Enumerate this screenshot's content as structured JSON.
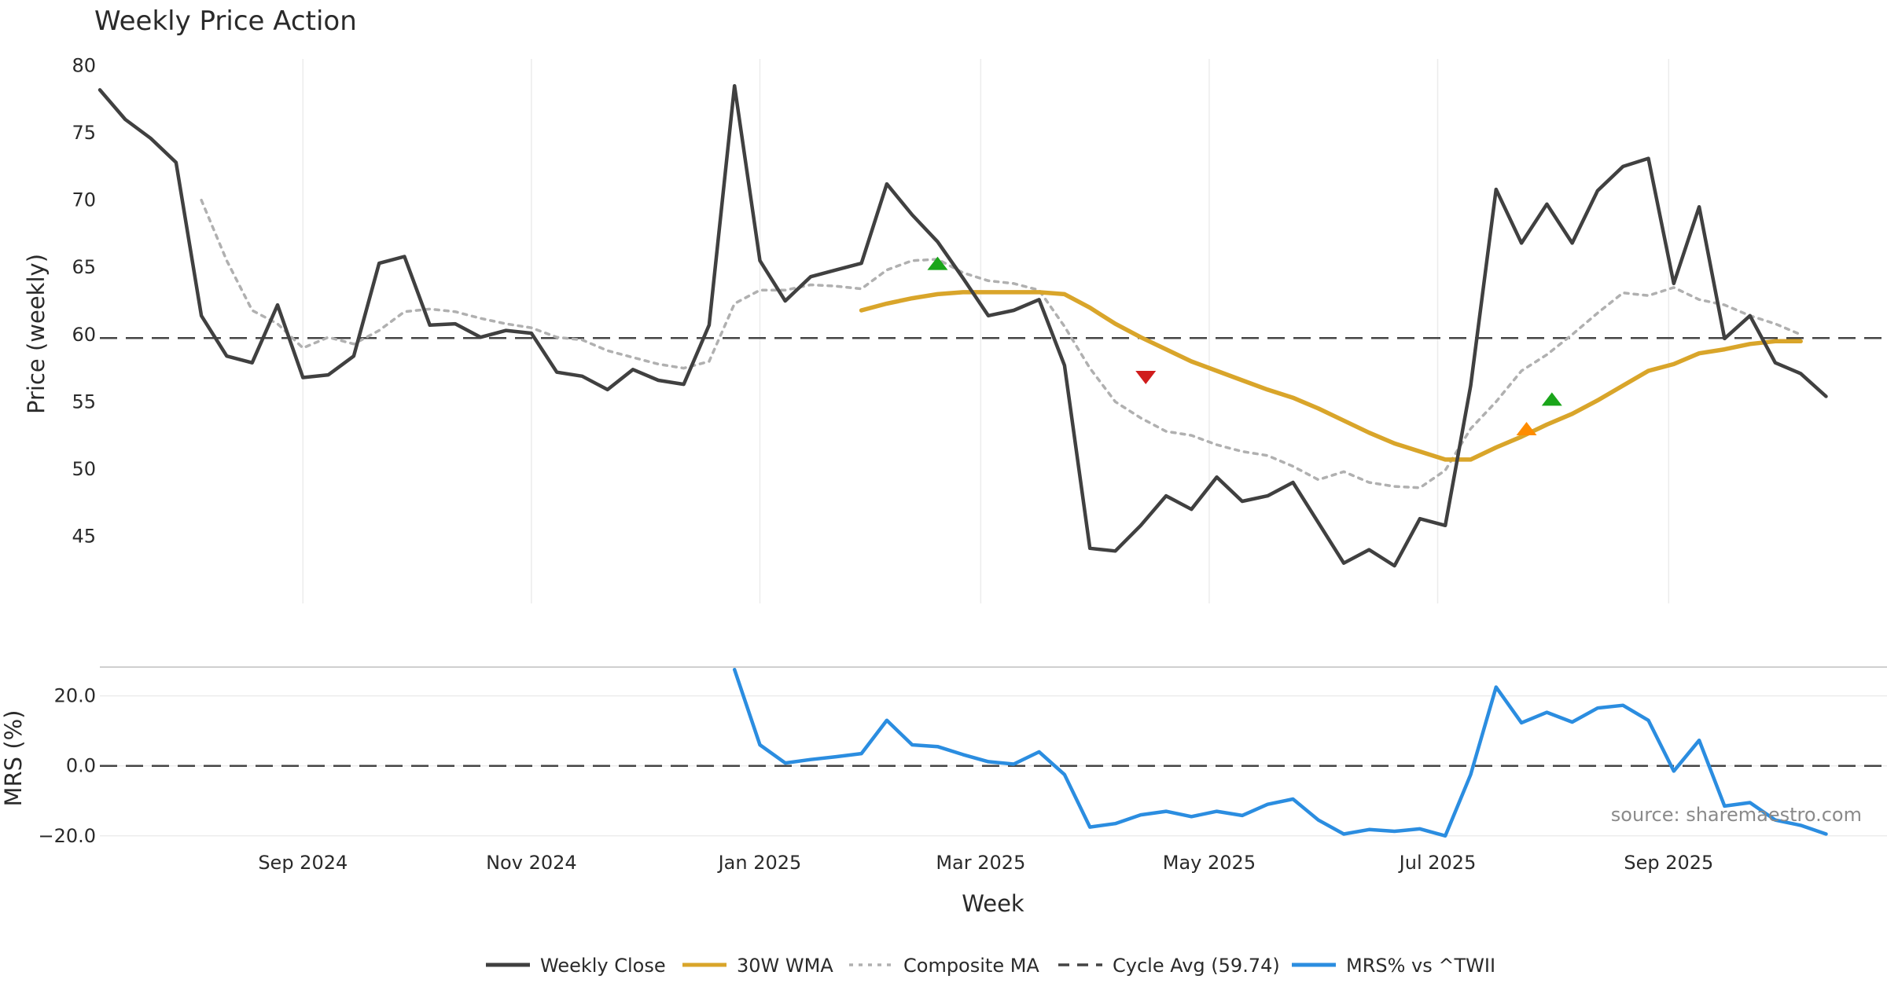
{
  "chart_data": {
    "type": "line",
    "title": "Weekly Price Action",
    "xlabel": "Week",
    "source": "source: sharemaestro.com",
    "x_tick_labels": [
      "Sep 2024",
      "Nov 2024",
      "Jan 2025",
      "Mar 2025",
      "May 2025",
      "Jul 2025",
      "Sep 2025"
    ],
    "x_tick_weeks": [
      8,
      17,
      26,
      34.7,
      43.7,
      52.7,
      61.8
    ],
    "x_range_weeks": [
      0,
      70.4
    ],
    "price_panel": {
      "ylabel": "Price (weekly)",
      "ylim": [
        40,
        80.5
      ],
      "yticks": [
        45,
        50,
        55,
        60,
        65,
        70,
        75,
        80
      ],
      "cycle_avg": 59.74,
      "series": [
        {
          "name": "Weekly Close",
          "color": "#404040",
          "style": "solid",
          "values": [
            78.2,
            76.0,
            74.6,
            72.8,
            61.4,
            58.4,
            57.9,
            62.2,
            56.8,
            57.0,
            58.4,
            65.3,
            65.8,
            60.7,
            60.8,
            59.8,
            60.3,
            60.1,
            57.2,
            56.9,
            55.9,
            57.4,
            56.6,
            56.3,
            60.7,
            78.5,
            65.5,
            62.5,
            64.3,
            64.8,
            65.3,
            71.2,
            68.9,
            66.9,
            64.2,
            61.4,
            61.8,
            62.6,
            57.7,
            44.1,
            43.9,
            45.8,
            48.0,
            47.0,
            49.4,
            47.6,
            48.0,
            49.0,
            46.0,
            43.0,
            44.0,
            42.8,
            46.3,
            45.8,
            56.2,
            70.8,
            66.8,
            69.7,
            66.8,
            70.7,
            72.5,
            73.1,
            63.8,
            69.5,
            59.7,
            61.4,
            57.9,
            57.1,
            55.4
          ]
        },
        {
          "name": "30W WMA",
          "color": "#d9a52a",
          "style": "solid",
          "start_week": 30,
          "values": [
            61.8,
            62.3,
            62.7,
            63.0,
            63.15,
            63.15,
            63.15,
            63.15,
            63.0,
            62.0,
            60.8,
            59.8,
            58.9,
            58.0,
            57.3,
            56.6,
            55.9,
            55.3,
            54.5,
            53.6,
            52.7,
            51.9,
            51.3,
            50.7,
            50.7,
            51.6,
            52.4,
            53.3,
            54.1,
            55.1,
            56.2,
            57.3,
            57.8,
            58.6,
            58.9,
            59.3,
            59.5,
            59.5
          ]
        },
        {
          "name": "Composite MA",
          "color": "#b0b0b0",
          "style": "dotted",
          "start_week": 4,
          "values": [
            70.0,
            65.5,
            61.8,
            60.8,
            59.0,
            59.8,
            59.3,
            60.3,
            61.7,
            61.9,
            61.7,
            61.2,
            60.8,
            60.5,
            59.8,
            59.6,
            58.8,
            58.3,
            57.8,
            57.5,
            58.0,
            62.3,
            63.3,
            63.3,
            63.7,
            63.6,
            63.4,
            64.8,
            65.5,
            65.6,
            64.6,
            64.0,
            63.8,
            63.3,
            60.6,
            57.5,
            55.0,
            53.8,
            52.8,
            52.5,
            51.8,
            51.3,
            51.0,
            50.2,
            49.2,
            49.8,
            49.0,
            48.7,
            48.6,
            49.9,
            53.0,
            55.0,
            57.3,
            58.5,
            60.0,
            61.6,
            63.1,
            62.9,
            63.5,
            62.6,
            62.2,
            61.4,
            60.8,
            60.0
          ]
        }
      ],
      "markers": [
        {
          "week": 33.0,
          "value": 65.3,
          "shape": "triangle-up",
          "color": "#1aa51a"
        },
        {
          "week": 41.2,
          "value": 56.8,
          "shape": "triangle-down",
          "color": "#d01c1c"
        },
        {
          "week": 56.2,
          "value": 53.0,
          "shape": "triangle-up",
          "color": "#ff8c00"
        },
        {
          "week": 57.2,
          "value": 55.2,
          "shape": "triangle-up",
          "color": "#1aa51a"
        }
      ]
    },
    "mrs_panel": {
      "ylabel": "MRS (%)",
      "ylim": [
        -20.5,
        28
      ],
      "yticks": [
        20.0,
        0.0,
        -20.0
      ],
      "ytick_labels": [
        "20.0",
        "0.0",
        "−20.0"
      ],
      "series": [
        {
          "name": "MRS% vs ^TWII",
          "color": "#2b8de0",
          "style": "solid",
          "start_week": 25,
          "values": [
            27.5,
            6.0,
            0.8,
            1.8,
            2.6,
            3.5,
            13.0,
            6.0,
            5.5,
            3.2,
            1.2,
            0.5,
            4.0,
            -2.5,
            -17.5,
            -16.5,
            -14.0,
            -13.0,
            -14.5,
            -13.0,
            -14.2,
            -11.0,
            -9.5,
            -15.5,
            -19.5,
            -18.2,
            -18.7,
            -18.0,
            -20.0,
            -2.5,
            22.5,
            12.3,
            15.3,
            12.5,
            16.5,
            17.3,
            13.0,
            -1.5,
            7.3,
            -11.5,
            -10.5,
            -15.5,
            -17.0,
            -19.5
          ]
        }
      ]
    },
    "legend": {
      "placement": "bottom-center",
      "entries": [
        {
          "label": "Weekly Close",
          "color": "#404040",
          "style": "solid"
        },
        {
          "label": "30W WMA",
          "color": "#d9a52a",
          "style": "solid"
        },
        {
          "label": "Composite MA",
          "color": "#b0b0b0",
          "style": "dotted"
        },
        {
          "label": "Cycle Avg (59.74)",
          "color": "#444444",
          "style": "dashed"
        },
        {
          "label": "MRS% vs ^TWII",
          "color": "#2b8de0",
          "style": "solid"
        }
      ]
    }
  }
}
